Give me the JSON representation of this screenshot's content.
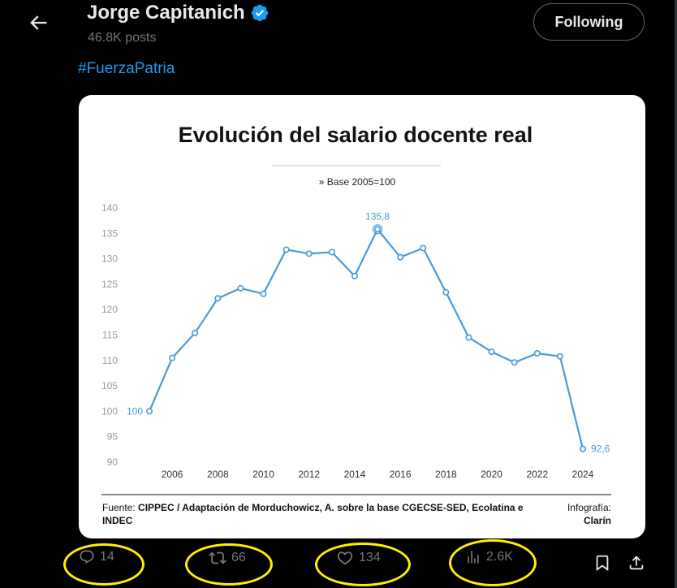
{
  "header": {
    "name": "Jorge Capitanich",
    "posts": "46.8K posts",
    "follow_label": "Following"
  },
  "tweet": {
    "hashtag": "#FuerzaPatria"
  },
  "infographic": {
    "title": "Evolución del salario docente real",
    "subtitle": "» Base 2005=100",
    "source_prefix": "Fuente: ",
    "source_bold": "CIPPEC / Adaptación de Morduchowicz, A. sobre la base CGECSE-SED, Ecolatina e INDEC",
    "credit_label": "Infografía:",
    "credit_name": "Clarín"
  },
  "chart_data": {
    "type": "line",
    "title": "Evolución del salario docente real",
    "subtitle": "» Base 2005=100",
    "x": [
      2005,
      2006,
      2007,
      2008,
      2009,
      2010,
      2011,
      2012,
      2013,
      2014,
      2015,
      2016,
      2017,
      2018,
      2019,
      2020,
      2021,
      2022,
      2023,
      2024
    ],
    "series": [
      {
        "values": [
          100,
          110.5,
          115.4,
          122.2,
          124.2,
          123.1,
          131.8,
          131.0,
          131.3,
          126.6,
          135.8,
          130.3,
          132.1,
          123.4,
          114.5,
          111.7,
          109.6,
          111.4,
          110.8,
          92.6
        ]
      }
    ],
    "x_ticks": [
      2006,
      2008,
      2010,
      2012,
      2014,
      2016,
      2018,
      2020,
      2022,
      2024
    ],
    "y_ticks": [
      90,
      95,
      100,
      105,
      110,
      115,
      120,
      125,
      130,
      135,
      140
    ],
    "ylim": [
      90,
      140
    ],
    "point_labels": [
      {
        "year": 2005,
        "text": "100"
      },
      {
        "year": 2015,
        "text": "135,8"
      },
      {
        "year": 2024,
        "text": "92,6"
      }
    ],
    "color": "#4a9ad8",
    "grid": false
  },
  "actions": {
    "replies": "14",
    "reposts": "66",
    "likes": "134",
    "views": "2.6K"
  },
  "colors": {
    "accent": "#1d9bf0",
    "highlight": "#ffee00",
    "muted": "#71767b"
  }
}
